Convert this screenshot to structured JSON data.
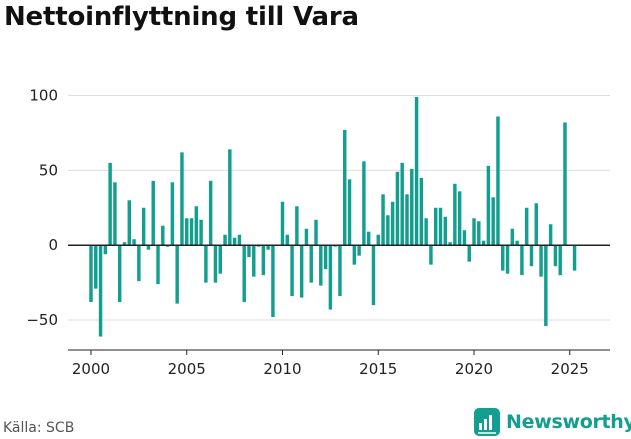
{
  "title": "Nettoinflyttning till Vara",
  "source": "Källa: SCB",
  "brand": {
    "name": "Newsworthy",
    "icon": "bar-chart-icon"
  },
  "colors": {
    "bar": "#139f8f",
    "zero_line": "#222222",
    "grid": "#dddddd",
    "brand": "#139f8f"
  },
  "chart_data": {
    "type": "bar",
    "title": "Nettoinflyttning till Vara",
    "xlabel": "",
    "ylabel": "",
    "ylim": [
      -70,
      105
    ],
    "xlim": [
      1998.8,
      2027.1
    ],
    "grid": true,
    "legend": "none",
    "y_ticks": [
      -50,
      0,
      50,
      100
    ],
    "y_tick_labels": [
      "−50",
      "0",
      "50",
      "100"
    ],
    "x_ticks": [
      2000,
      2005,
      2010,
      2015,
      2020,
      2025
    ],
    "x_tick_labels": [
      "2000",
      "2005",
      "2010",
      "2015",
      "2020",
      "2025"
    ],
    "frequency": "quarterly",
    "x": [
      "2000 Q1",
      "2000 Q2",
      "2000 Q3",
      "2000 Q4",
      "2001 Q1",
      "2001 Q2",
      "2001 Q3",
      "2001 Q4",
      "2002 Q1",
      "2002 Q2",
      "2002 Q3",
      "2002 Q4",
      "2003 Q1",
      "2003 Q2",
      "2003 Q3",
      "2003 Q4",
      "2004 Q1",
      "2004 Q2",
      "2004 Q3",
      "2004 Q4",
      "2005 Q1",
      "2005 Q2",
      "2005 Q3",
      "2005 Q4",
      "2006 Q1",
      "2006 Q2",
      "2006 Q3",
      "2006 Q4",
      "2007 Q1",
      "2007 Q2",
      "2007 Q3",
      "2007 Q4",
      "2008 Q1",
      "2008 Q2",
      "2008 Q3",
      "2008 Q4",
      "2009 Q1",
      "2009 Q2",
      "2009 Q3",
      "2009 Q4",
      "2010 Q1",
      "2010 Q2",
      "2010 Q3",
      "2010 Q4",
      "2011 Q1",
      "2011 Q2",
      "2011 Q3",
      "2011 Q4",
      "2012 Q1",
      "2012 Q2",
      "2012 Q3",
      "2012 Q4",
      "2013 Q1",
      "2013 Q2",
      "2013 Q3",
      "2013 Q4",
      "2014 Q1",
      "2014 Q2",
      "2014 Q3",
      "2014 Q4",
      "2015 Q1",
      "2015 Q2",
      "2015 Q3",
      "2015 Q4",
      "2016 Q1",
      "2016 Q2",
      "2016 Q3",
      "2016 Q4",
      "2017 Q1",
      "2017 Q2",
      "2017 Q3",
      "2017 Q4",
      "2018 Q1",
      "2018 Q2",
      "2018 Q3",
      "2018 Q4",
      "2019 Q1",
      "2019 Q2",
      "2019 Q3",
      "2019 Q4",
      "2020 Q1",
      "2020 Q2",
      "2020 Q3",
      "2020 Q4",
      "2021 Q1",
      "2021 Q2",
      "2021 Q3",
      "2021 Q4",
      "2022 Q1",
      "2022 Q2",
      "2022 Q3",
      "2022 Q4",
      "2023 Q1",
      "2023 Q2",
      "2023 Q3",
      "2023 Q4",
      "2024 Q1",
      "2024 Q2",
      "2024 Q3",
      "2024 Q4",
      "2025 Q1",
      "2025 Q2"
    ],
    "values": [
      -38,
      -29,
      -61,
      -6,
      55,
      42,
      -38,
      2,
      30,
      4,
      -24,
      25,
      -3,
      43,
      -26,
      13,
      -1,
      42,
      -39,
      62,
      18,
      18,
      26,
      17,
      -25,
      43,
      -25,
      -19,
      7,
      64,
      5,
      7,
      -38,
      -8,
      -21,
      -1,
      -20,
      -3,
      -48,
      0,
      29,
      7,
      -34,
      26,
      -35,
      11,
      -25,
      17,
      -27,
      -16,
      -43,
      -1,
      -34,
      77,
      44,
      -13,
      -7,
      56,
      9,
      -40,
      7,
      34,
      20,
      29,
      49,
      55,
      34,
      51,
      99,
      45,
      18,
      -13,
      25,
      25,
      19,
      2,
      41,
      36,
      10,
      -11,
      18,
      16,
      3,
      53,
      32,
      86,
      -17,
      -19,
      11,
      3,
      -20,
      25,
      -14,
      28,
      -21,
      -54,
      14,
      -14,
      -20,
      82,
      0,
      -17
    ]
  }
}
